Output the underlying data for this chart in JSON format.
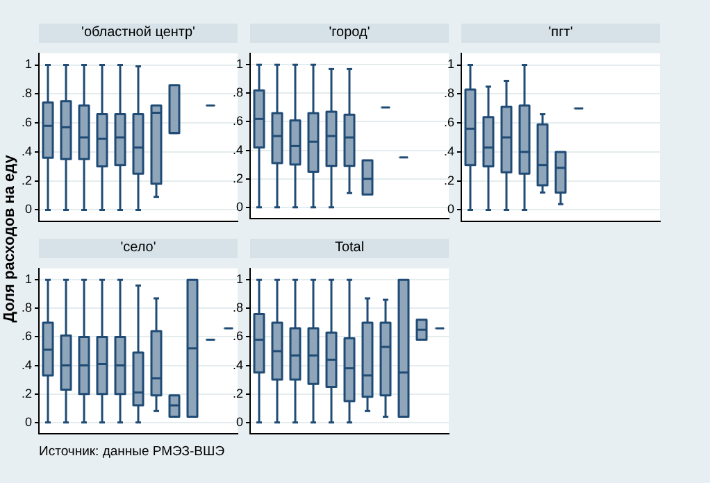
{
  "chart_data": [
    {
      "type": "box",
      "title": "'областной центр'",
      "ylabel": "Доля расходов на еду",
      "color": "#8fa5ba",
      "ylim": [
        -0.08,
        1.08
      ],
      "yticks": [
        {
          "value": 0,
          "label": "0"
        },
        {
          "value": 0.2,
          "label": ".2"
        },
        {
          "value": 0.4,
          "label": ".4"
        },
        {
          "value": 0.6,
          "label": ".6"
        },
        {
          "value": 0.8,
          "label": ".8"
        },
        {
          "value": 1,
          "label": "1"
        }
      ],
      "grid": "y",
      "tick_labels": "y",
      "categories": [
        null,
        null,
        null,
        null,
        null,
        null,
        null,
        null,
        null,
        null,
        null
      ],
      "boxes": [
        {
          "low": 0,
          "q1": 0.36,
          "median": 0.58,
          "q3": 0.74,
          "high": 1
        },
        {
          "low": 0,
          "q1": 0.35,
          "median": 0.57,
          "q3": 0.75,
          "high": 1
        },
        {
          "low": 0,
          "q1": 0.35,
          "median": 0.5,
          "q3": 0.72,
          "high": 1
        },
        {
          "low": 0,
          "q1": 0.3,
          "median": 0.49,
          "q3": 0.66,
          "high": 1
        },
        {
          "low": 0,
          "q1": 0.31,
          "median": 0.5,
          "q3": 0.66,
          "high": 1
        },
        {
          "low": 0,
          "q1": 0.25,
          "median": 0.43,
          "q3": 0.66,
          "high": 0.99
        },
        {
          "low": 0.09,
          "q1": 0.18,
          "median": 0.67,
          "q3": 0.72,
          "high": 0.72
        },
        {
          "low": 0.53,
          "q1": 0.53,
          "median": 0.53,
          "q3": 0.86,
          "high": 0.86
        },
        null,
        {
          "low": 0.72,
          "q1": 0.72,
          "median": 0.72,
          "q3": 0.72,
          "high": 0.72
        },
        null
      ]
    },
    {
      "type": "box",
      "title": "'город'",
      "color": "#8fa5ba",
      "ylim": [
        -0.08,
        1.08
      ],
      "yticks": [
        {
          "value": 0,
          "label": "0"
        },
        {
          "value": 0.2,
          "label": ".2"
        },
        {
          "value": 0.4,
          "label": ".4"
        },
        {
          "value": 0.6,
          "label": ".6"
        },
        {
          "value": 0.8,
          "label": ".8"
        },
        {
          "value": 1,
          "label": "1"
        }
      ],
      "grid": "y",
      "tick_labels": "y",
      "categories": [
        null,
        null,
        null,
        null,
        null,
        null,
        null,
        null,
        null,
        null,
        null
      ],
      "boxes": [
        {
          "low": 0,
          "q1": 0.42,
          "median": 0.62,
          "q3": 0.82,
          "high": 1
        },
        {
          "low": 0,
          "q1": 0.31,
          "median": 0.5,
          "q3": 0.66,
          "high": 1
        },
        {
          "low": 0,
          "q1": 0.3,
          "median": 0.43,
          "q3": 0.61,
          "high": 1
        },
        {
          "low": 0,
          "q1": 0.25,
          "median": 0.46,
          "q3": 0.66,
          "high": 1
        },
        {
          "low": 0,
          "q1": 0.29,
          "median": 0.5,
          "q3": 0.67,
          "high": 0.97
        },
        {
          "low": 0.1,
          "q1": 0.29,
          "median": 0.49,
          "q3": 0.65,
          "high": 0.97
        },
        {
          "low": 0.09,
          "q1": 0.09,
          "median": 0.2,
          "q3": 0.33,
          "high": 0.33
        },
        {
          "low": 0.7,
          "q1": 0.7,
          "median": 0.7,
          "q3": 0.7,
          "high": 0.7
        },
        {
          "low": 0.35,
          "q1": 0.35,
          "median": 0.35,
          "q3": 0.35,
          "high": 0.35
        },
        null,
        null
      ]
    },
    {
      "type": "box",
      "title": "'пгт'",
      "color": "#8fa5ba",
      "ylim": [
        -0.08,
        1.08
      ],
      "yticks": [
        {
          "value": 0,
          "label": "0"
        },
        {
          "value": 0.2,
          "label": ".2"
        },
        {
          "value": 0.4,
          "label": ".4"
        },
        {
          "value": 0.6,
          "label": ".6"
        },
        {
          "value": 0.8,
          "label": ".8"
        },
        {
          "value": 1,
          "label": "1"
        }
      ],
      "grid": "y",
      "tick_labels": "y",
      "categories": [
        null,
        null,
        null,
        null,
        null,
        null,
        null,
        null,
        null,
        null,
        null
      ],
      "boxes": [
        {
          "low": 0,
          "q1": 0.31,
          "median": 0.56,
          "q3": 0.83,
          "high": 1
        },
        {
          "low": 0,
          "q1": 0.3,
          "median": 0.43,
          "q3": 0.64,
          "high": 0.85
        },
        {
          "low": 0,
          "q1": 0.26,
          "median": 0.5,
          "q3": 0.71,
          "high": 0.89
        },
        {
          "low": 0,
          "q1": 0.25,
          "median": 0.4,
          "q3": 0.72,
          "high": 1
        },
        {
          "low": 0.12,
          "q1": 0.17,
          "median": 0.31,
          "q3": 0.59,
          "high": 0.66
        },
        {
          "low": 0.04,
          "q1": 0.12,
          "median": 0.29,
          "q3": 0.4,
          "high": 0.4
        },
        {
          "low": 0.7,
          "q1": 0.7,
          "median": 0.7,
          "q3": 0.7,
          "high": 0.7
        },
        null,
        null,
        null,
        null
      ]
    },
    {
      "type": "box",
      "title": "'село'",
      "annotations": [
        "Источник: данные РМЭЗ-ВШЭ"
      ],
      "color": "#8fa5ba",
      "ylim": [
        -0.08,
        1.08
      ],
      "yticks": [
        {
          "value": 0,
          "label": "0"
        },
        {
          "value": 0.2,
          "label": ".2"
        },
        {
          "value": 0.4,
          "label": ".4"
        },
        {
          "value": 0.6,
          "label": ".6"
        },
        {
          "value": 0.8,
          "label": ".8"
        },
        {
          "value": 1,
          "label": "1"
        }
      ],
      "grid": "y",
      "tick_labels": "y",
      "categories": [
        null,
        null,
        null,
        null,
        null,
        null,
        null,
        null,
        null,
        null,
        null
      ],
      "boxes": [
        {
          "low": 0,
          "q1": 0.33,
          "median": 0.51,
          "q3": 0.7,
          "high": 1
        },
        {
          "low": 0,
          "q1": 0.23,
          "median": 0.4,
          "q3": 0.61,
          "high": 1
        },
        {
          "low": 0,
          "q1": 0.2,
          "median": 0.4,
          "q3": 0.6,
          "high": 1
        },
        {
          "low": 0,
          "q1": 0.2,
          "median": 0.41,
          "q3": 0.6,
          "high": 1
        },
        {
          "low": 0,
          "q1": 0.2,
          "median": 0.4,
          "q3": 0.6,
          "high": 1
        },
        {
          "low": 0,
          "q1": 0.12,
          "median": 0.21,
          "q3": 0.49,
          "high": 0.96
        },
        {
          "low": 0.08,
          "q1": 0.19,
          "median": 0.31,
          "q3": 0.64,
          "high": 0.87
        },
        {
          "low": 0.04,
          "q1": 0.04,
          "median": 0.12,
          "q3": 0.19,
          "high": 0.19
        },
        {
          "low": 0.04,
          "q1": 0.04,
          "median": 0.52,
          "q3": 1,
          "high": 1
        },
        {
          "low": 0.58,
          "q1": 0.58,
          "median": 0.58,
          "q3": 0.58,
          "high": 0.58
        },
        {
          "low": 0.66,
          "q1": 0.66,
          "median": 0.66,
          "q3": 0.66,
          "high": 0.66
        }
      ]
    },
    {
      "type": "box",
      "title": "Total",
      "color": "#8fa5ba",
      "ylim": [
        -0.08,
        1.08
      ],
      "yticks": [
        {
          "value": 0,
          "label": "0"
        },
        {
          "value": 0.2,
          "label": ".2"
        },
        {
          "value": 0.4,
          "label": ".4"
        },
        {
          "value": 0.6,
          "label": ".6"
        },
        {
          "value": 0.8,
          "label": ".8"
        },
        {
          "value": 1,
          "label": "1"
        }
      ],
      "grid": "y",
      "tick_labels": "y",
      "categories": [
        null,
        null,
        null,
        null,
        null,
        null,
        null,
        null,
        null,
        null,
        null
      ],
      "boxes": [
        {
          "low": 0,
          "q1": 0.35,
          "median": 0.58,
          "q3": 0.76,
          "high": 1
        },
        {
          "low": 0,
          "q1": 0.3,
          "median": 0.5,
          "q3": 0.7,
          "high": 1
        },
        {
          "low": 0,
          "q1": 0.3,
          "median": 0.47,
          "q3": 0.66,
          "high": 1
        },
        {
          "low": 0,
          "q1": 0.27,
          "median": 0.47,
          "q3": 0.66,
          "high": 1
        },
        {
          "low": 0,
          "q1": 0.25,
          "median": 0.44,
          "q3": 0.63,
          "high": 1
        },
        {
          "low": 0,
          "q1": 0.15,
          "median": 0.38,
          "q3": 0.59,
          "high": 1
        },
        {
          "low": 0.08,
          "q1": 0.18,
          "median": 0.33,
          "q3": 0.7,
          "high": 0.87
        },
        {
          "low": 0.04,
          "q1": 0.19,
          "median": 0.53,
          "q3": 0.7,
          "high": 0.86
        },
        {
          "low": 0.04,
          "q1": 0.04,
          "median": 0.35,
          "q3": 1,
          "high": 1
        },
        {
          "low": 0.58,
          "q1": 0.58,
          "median": 0.65,
          "q3": 0.72,
          "high": 0.72
        },
        {
          "low": 0.66,
          "q1": 0.66,
          "median": 0.66,
          "q3": 0.66,
          "high": 0.66
        }
      ]
    }
  ]
}
